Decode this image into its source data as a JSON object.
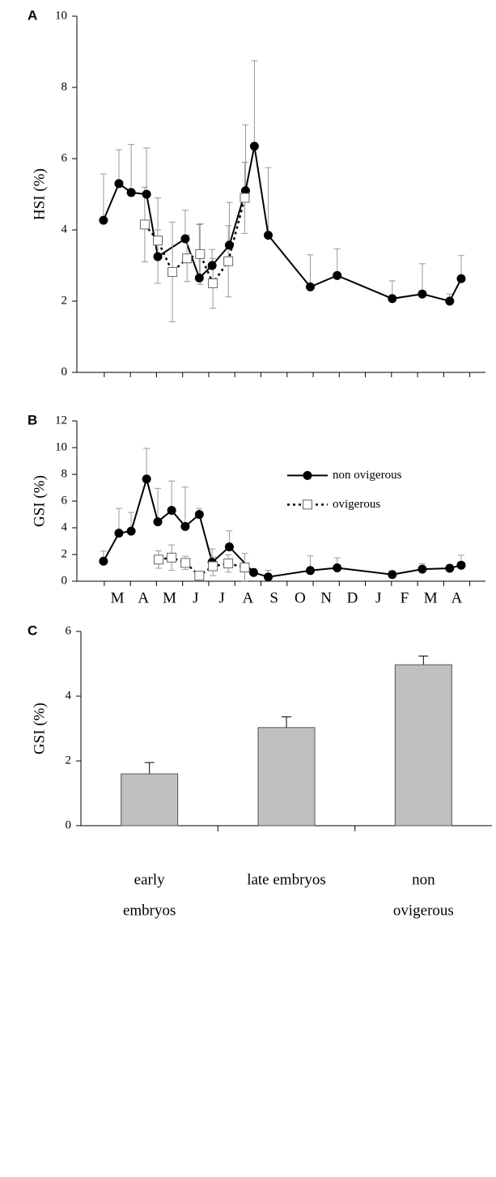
{
  "chart_data": [
    {
      "type": "line",
      "panel_label": "A",
      "ylabel": "HSI (%)",
      "xlim": [
        -1.05,
        14.6
      ],
      "ylim": [
        0,
        10
      ],
      "yticks": [
        0,
        2,
        4,
        6,
        8,
        10
      ],
      "xticks": [
        {
          "value": 0.5,
          "label": ""
        },
        {
          "value": 1.5,
          "label": ""
        },
        {
          "value": 2.5,
          "label": ""
        },
        {
          "value": 3.5,
          "label": ""
        },
        {
          "value": 4.5,
          "label": ""
        },
        {
          "value": 5.5,
          "label": ""
        },
        {
          "value": 6.5,
          "label": ""
        },
        {
          "value": 7.5,
          "label": ""
        },
        {
          "value": 8.5,
          "label": ""
        },
        {
          "value": 9.5,
          "label": ""
        },
        {
          "value": 10.5,
          "label": ""
        },
        {
          "value": 11.5,
          "label": ""
        },
        {
          "value": 12.5,
          "label": ""
        },
        {
          "value": 13.5,
          "label": ""
        }
      ],
      "series": [
        {
          "color": "#000000",
          "marker": "circle",
          "dash": false,
          "error_bars": "up",
          "x": [
            -0.03,
            0.56,
            1.03,
            1.62,
            2.05,
            3.1,
            3.64,
            4.13,
            4.79,
            5.41,
            5.75,
            6.28,
            7.89,
            8.92,
            11.03,
            12.18,
            13.23,
            13.67
          ],
          "values": [
            4.27,
            5.3,
            5.05,
            5.0,
            3.25,
            3.75,
            2.65,
            3.0,
            3.57,
            5.1,
            6.35,
            3.85,
            2.4,
            2.72,
            2.07,
            2.2,
            2.0,
            2.63
          ],
          "errors": [
            1.3,
            0.95,
            1.35,
            1.3,
            0.75,
            0.8,
            1.5,
            0.45,
            1.2,
            1.85,
            2.4,
            1.9,
            0.9,
            0.75,
            0.5,
            0.85,
            0.2,
            0.65
          ]
        },
        {
          "color": "#000000",
          "marker": "square",
          "dash": true,
          "error_bars": "both",
          "x": [
            1.55,
            2.05,
            2.61,
            3.17,
            3.67,
            4.16,
            4.75,
            5.38
          ],
          "values": [
            4.15,
            3.7,
            2.82,
            3.2,
            3.32,
            2.5,
            3.12,
            4.9
          ],
          "errors": [
            1.05,
            1.2,
            1.4,
            0.65,
            0.85,
            0.7,
            1.0,
            1.0
          ]
        }
      ]
    },
    {
      "type": "line",
      "panel_label": "B",
      "ylabel": "GSI (%)",
      "xlim": [
        -1.05,
        14.6
      ],
      "ylim": [
        0,
        12
      ],
      "yticks": [
        0,
        2,
        4,
        6,
        8,
        10,
        12
      ],
      "xticks": [
        {
          "value": 0.5,
          "label": "M"
        },
        {
          "value": 1.5,
          "label": "A"
        },
        {
          "value": 2.5,
          "label": "M"
        },
        {
          "value": 3.5,
          "label": "J"
        },
        {
          "value": 4.5,
          "label": "J"
        },
        {
          "value": 5.5,
          "label": "A"
        },
        {
          "value": 6.5,
          "label": "S"
        },
        {
          "value": 7.5,
          "label": "O"
        },
        {
          "value": 8.5,
          "label": "N"
        },
        {
          "value": 9.5,
          "label": "D"
        },
        {
          "value": 10.5,
          "label": "J"
        },
        {
          "value": 11.5,
          "label": "F"
        },
        {
          "value": 12.5,
          "label": "M"
        },
        {
          "value": 13.5,
          "label": "A"
        }
      ],
      "legend": "right",
      "series": [
        {
          "name": "non ovigerous",
          "color": "#000000",
          "marker": "circle",
          "dash": false,
          "error_bars": "up",
          "x": [
            -0.03,
            0.56,
            1.03,
            1.62,
            2.05,
            2.58,
            3.1,
            3.64,
            4.13,
            4.79,
            5.72,
            6.28,
            7.89,
            8.92,
            11.03,
            12.18,
            13.23,
            13.67
          ],
          "values": [
            1.5,
            3.6,
            3.75,
            7.65,
            4.45,
            5.3,
            4.1,
            5.0,
            1.42,
            2.57,
            0.65,
            0.32,
            0.8,
            1.0,
            0.5,
            0.9,
            0.97,
            1.2
          ],
          "errors": [
            0.75,
            1.85,
            1.4,
            2.3,
            2.5,
            2.2,
            2.95,
            0.45,
            1.0,
            1.2,
            0.3,
            0.5,
            1.1,
            0.75,
            0.25,
            0.4,
            0.25,
            0.75
          ]
        },
        {
          "name": "ovigerous",
          "color": "#000000",
          "marker": "square",
          "dash": true,
          "error_bars": "both",
          "x": [
            2.08,
            2.58,
            3.11,
            3.64,
            4.16,
            4.75,
            5.38
          ],
          "values": [
            1.62,
            1.77,
            1.37,
            0.42,
            1.12,
            1.33,
            1.03
          ],
          "errors": [
            0.65,
            0.95,
            0.5,
            0.2,
            0.7,
            0.65,
            1.05
          ]
        }
      ]
    },
    {
      "type": "bar",
      "panel_label": "C",
      "ylabel": "GSI (%)",
      "ylim": [
        0,
        6
      ],
      "yticks": [
        0,
        2,
        4,
        6
      ],
      "color": "#c0c0c0",
      "categories": [
        [
          "early",
          "embryos"
        ],
        [
          "late embryos"
        ],
        [
          "non",
          "ovigerous"
        ]
      ],
      "values": [
        1.6,
        3.03,
        4.97
      ],
      "errors": [
        0.35,
        0.33,
        0.27
      ]
    }
  ]
}
